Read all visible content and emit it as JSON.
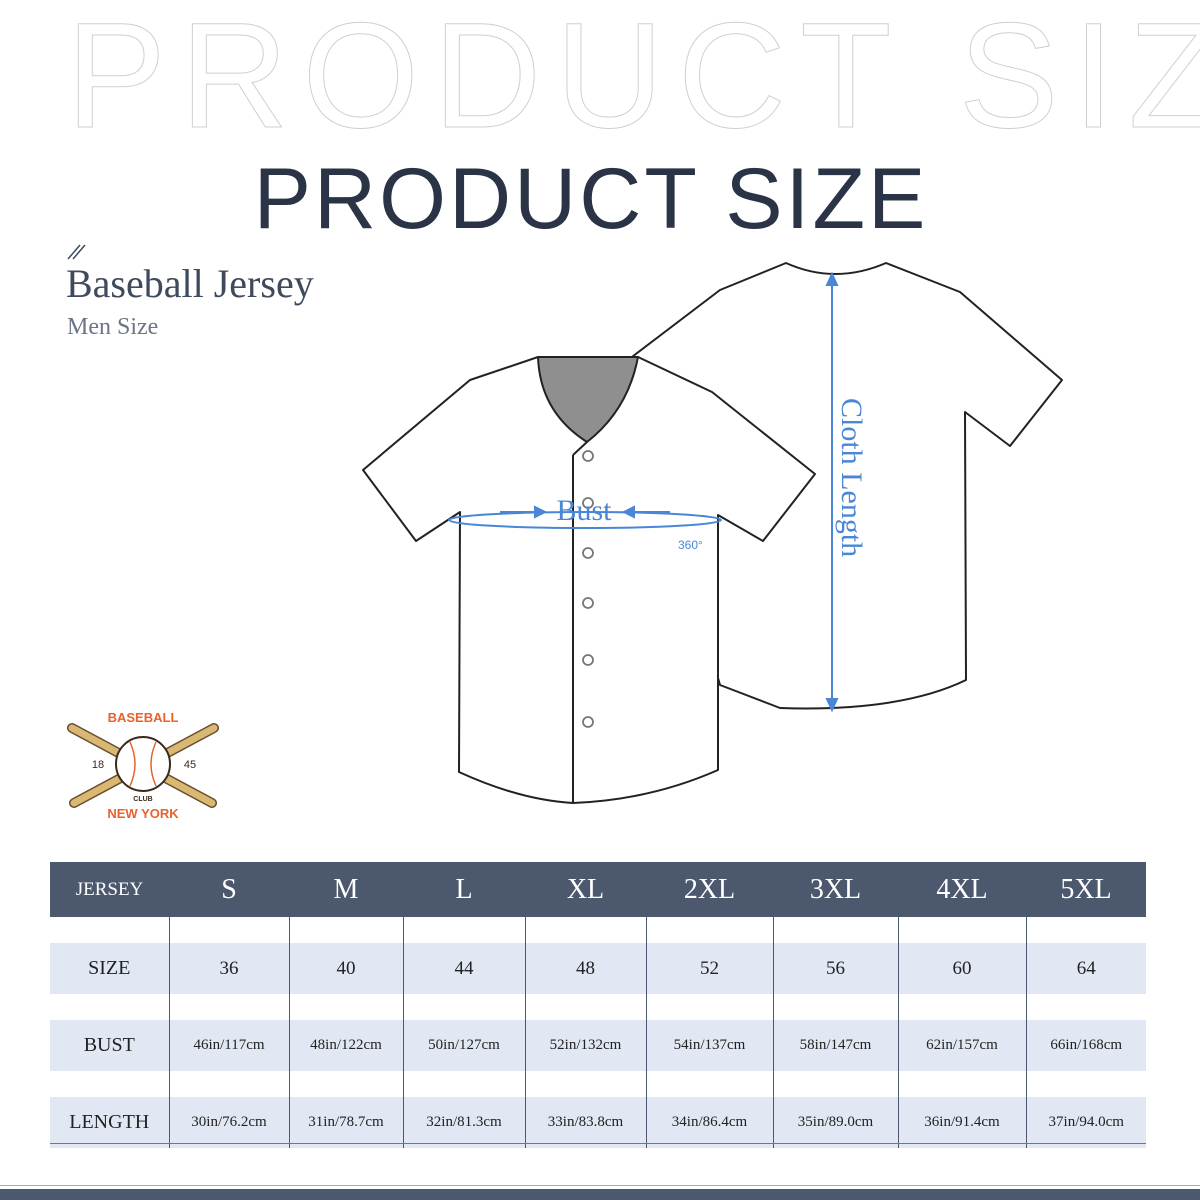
{
  "header": {
    "watermark": "PRODUCT SIZE",
    "title": "PRODUCT SIZE",
    "product": "Baseball Jersey",
    "category": "Men Size"
  },
  "diagram": {
    "bust_label": "Bust",
    "bust_note": "360°",
    "length_label": "Cloth Length",
    "accent": "#4a86d6"
  },
  "logo": {
    "top": "BASEBALL",
    "bottom": "NEW YORK",
    "middle": "CLUB",
    "left_year": "18",
    "right_year": "45"
  },
  "table": {
    "header": [
      "JERSEY",
      "S",
      "M",
      "L",
      "XL",
      "2XL",
      "3XL",
      "4XL",
      "5XL"
    ],
    "rows": [
      {
        "label": "SIZE",
        "values": [
          "36",
          "40",
          "44",
          "48",
          "52",
          "56",
          "60",
          "64"
        ]
      },
      {
        "label": "BUST",
        "values": [
          "46in/117cm",
          "48in/122cm",
          "50in/127cm",
          "52in/132cm",
          "54in/137cm",
          "58in/147cm",
          "62in/157cm",
          "66in/168cm"
        ]
      },
      {
        "label": "LENGTH",
        "values": [
          "30in/76.2cm",
          "31in/78.7cm",
          "32in/81.3cm",
          "33in/83.8cm",
          "34in/86.4cm",
          "35in/89.0cm",
          "36in/91.4cm",
          "37in/94.0cm"
        ]
      }
    ]
  },
  "colors": {
    "header_bg": "#4b586d",
    "row_bg": "#e1e8f3",
    "logo_orange": "#e8622c"
  }
}
